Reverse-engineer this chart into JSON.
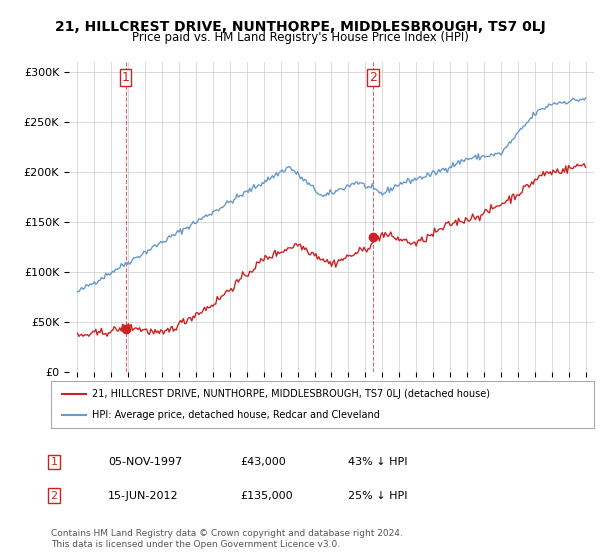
{
  "title": "21, HILLCREST DRIVE, NUNTHORPE, MIDDLESBROUGH, TS7 0LJ",
  "subtitle": "Price paid vs. HM Land Registry's House Price Index (HPI)",
  "ylabel_ticks": [
    "£0",
    "£50K",
    "£100K",
    "£150K",
    "£200K",
    "£250K",
    "£300K"
  ],
  "ytick_values": [
    0,
    50000,
    100000,
    150000,
    200000,
    250000,
    300000
  ],
  "ylim": [
    0,
    310000
  ],
  "hpi_color": "#6699cc",
  "price_color": "#cc2222",
  "dashed_color": "#cc2222",
  "sale1": {
    "date_num": 1997.84,
    "price": 43000,
    "label": "1"
  },
  "sale2": {
    "date_num": 2012.46,
    "price": 135000,
    "label": "2"
  },
  "legend_label1": "21, HILLCREST DRIVE, NUNTHORPE, MIDDLESBROUGH, TS7 0LJ (detached house)",
  "legend_label2": "HPI: Average price, detached house, Redcar and Cleveland",
  "table_row1": [
    "1",
    "05-NOV-1997",
    "£43,000",
    "43% ↓ HPI"
  ],
  "table_row2": [
    "2",
    "15-JUN-2012",
    "£135,000",
    "25% ↓ HPI"
  ],
  "footer": "Contains HM Land Registry data © Crown copyright and database right 2024.\nThis data is licensed under the Open Government Licence v3.0.",
  "background_color": "#ffffff"
}
